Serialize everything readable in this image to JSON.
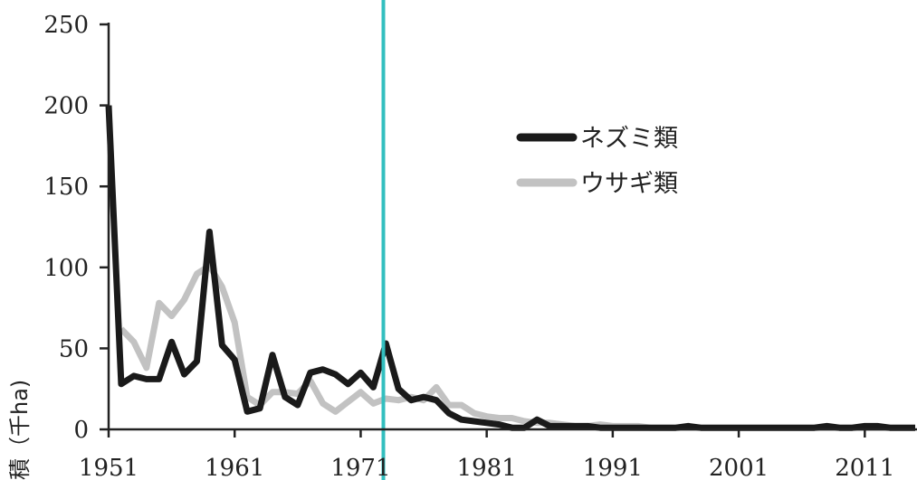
{
  "chart_data": {
    "type": "line",
    "xlabel": "積（千ha)",
    "ylabel": "",
    "xlim": [
      1951,
      2015
    ],
    "ylim": [
      0,
      250
    ],
    "x_ticks": [
      "1951",
      "1961",
      "1971",
      "1981",
      "1991",
      "2001",
      "2011"
    ],
    "y_ticks": [
      "0",
      "50",
      "100",
      "150",
      "200",
      "250"
    ],
    "grid": false,
    "legend": "right",
    "marker_line_x": 1972.8,
    "colors": {
      "axis": "#222222",
      "marker_line": "#33bfbf"
    },
    "x": [
      1951,
      1952,
      1953,
      1954,
      1955,
      1956,
      1957,
      1958,
      1959,
      1960,
      1961,
      1962,
      1963,
      1964,
      1965,
      1966,
      1967,
      1968,
      1969,
      1970,
      1971,
      1972,
      1973,
      1974,
      1975,
      1976,
      1977,
      1978,
      1979,
      1980,
      1981,
      1982,
      1983,
      1984,
      1985,
      1986,
      1987,
      1988,
      1989,
      1990,
      1991,
      1992,
      1993,
      1994,
      1995,
      1996,
      1997,
      1998,
      1999,
      2000,
      2001,
      2002,
      2003,
      2004,
      2005,
      2006,
      2007,
      2008,
      2009,
      2010,
      2011,
      2012,
      2013,
      2014,
      2015
    ],
    "series": [
      {
        "name": "ネズミ類",
        "color": "#1a1a1a",
        "values": [
          200,
          28,
          33,
          31,
          31,
          54,
          34,
          42,
          122,
          52,
          43,
          11,
          13,
          46,
          20,
          15,
          35,
          37,
          34,
          28,
          35,
          26,
          53,
          25,
          18,
          20,
          18,
          10,
          6,
          5,
          4,
          3,
          1,
          1,
          6,
          2,
          2,
          2,
          2,
          1,
          1,
          1,
          1,
          1,
          1,
          1,
          2,
          1,
          1,
          1,
          1,
          1,
          1,
          1,
          1,
          1,
          1,
          2,
          1,
          1,
          2,
          2,
          1,
          1,
          1
        ]
      },
      {
        "name": "ウサギ類",
        "color": "#c2c2c2",
        "values": [
          null,
          62,
          54,
          38,
          78,
          70,
          80,
          96,
          101,
          88,
          66,
          20,
          15,
          23,
          23,
          22,
          30,
          16,
          11,
          17,
          23,
          16,
          19,
          18,
          20,
          18,
          26,
          15,
          15,
          10,
          8,
          7,
          7,
          5,
          4,
          4,
          3,
          2,
          2,
          3,
          2,
          2,
          2,
          1,
          1,
          1,
          1,
          1,
          1,
          1,
          1,
          1,
          1,
          1,
          1,
          1,
          1,
          1,
          1,
          1,
          1,
          1,
          1,
          1,
          1
        ]
      }
    ]
  }
}
